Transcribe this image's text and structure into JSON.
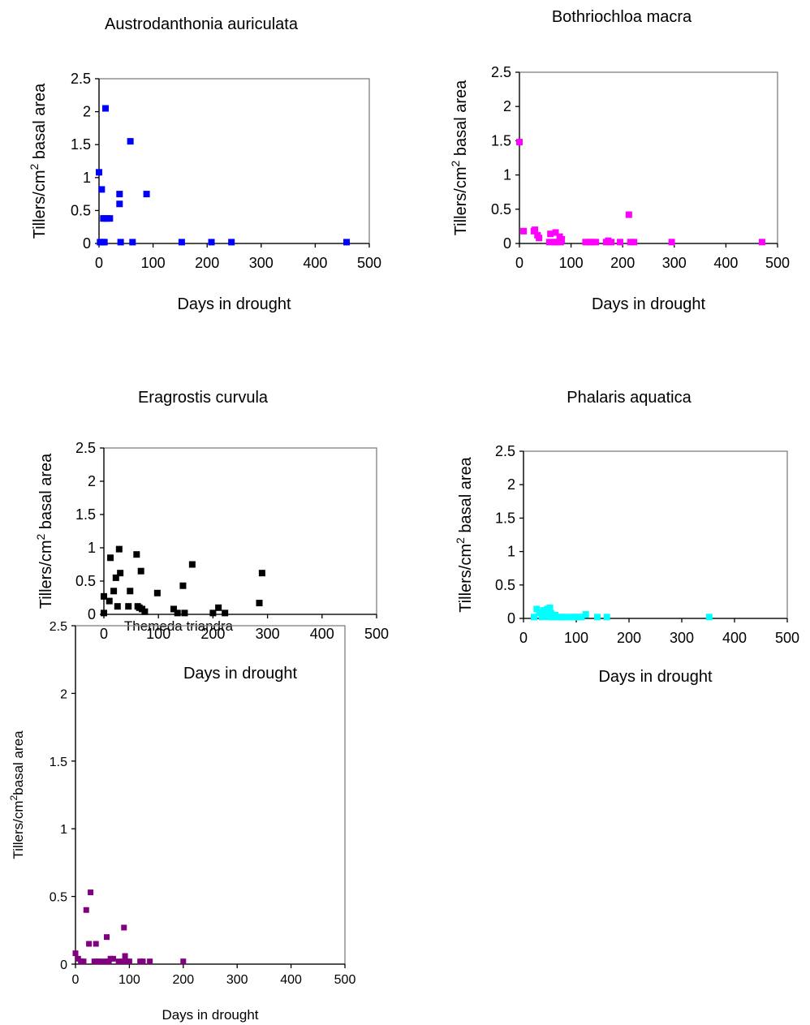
{
  "chart_data": [
    {
      "type": "scatter",
      "title": "Austrodanthonia auriculata",
      "xlabel": "Days in drought",
      "ylabel_prefix": "Tillers/cm",
      "ylabel_sup": "2",
      "ylabel_suffix": " basal area",
      "xlim": [
        0,
        500
      ],
      "ylim": [
        0,
        2.5
      ],
      "xticks": [
        "0",
        "100",
        "200",
        "300",
        "400",
        "500"
      ],
      "yticks": [
        "0",
        "0.5",
        "1",
        "1.5",
        "2",
        "2.5"
      ],
      "color": "#0000ff",
      "series": [
        {
          "x": [
            0,
            2,
            5,
            7,
            8,
            10,
            10,
            12,
            15,
            20,
            38,
            38,
            40,
            58,
            62,
            88,
            153,
            208,
            245,
            458
          ],
          "y": [
            1.08,
            0.02,
            0.82,
            0.02,
            0.38,
            0.02,
            0.38,
            2.05,
            0.38,
            0.38,
            0.6,
            0.75,
            0.02,
            1.55,
            0.02,
            0.75,
            0.02,
            0.02,
            0.02,
            0.02
          ]
        }
      ]
    },
    {
      "type": "scatter",
      "title": "Bothriochloa macra",
      "xlabel": "Days in drought",
      "ylabel_prefix": "Tillers/cm",
      "ylabel_sup": "2",
      "ylabel_suffix": " basal area",
      "xlim": [
        0,
        500
      ],
      "ylim": [
        0,
        2.5
      ],
      "xticks": [
        "0",
        "100",
        "200",
        "300",
        "400",
        "500"
      ],
      "yticks": [
        "0",
        "0.5",
        "1",
        "1.5",
        "2",
        "2.5"
      ],
      "color": "#ff00ff",
      "series": [
        {
          "x": [
            0,
            8,
            28,
            30,
            35,
            38,
            58,
            60,
            68,
            70,
            72,
            78,
            80,
            82,
            128,
            135,
            140,
            148,
            168,
            172,
            178,
            195,
            212,
            215,
            222,
            295,
            470
          ],
          "y": [
            1.48,
            0.18,
            0.18,
            0.2,
            0.12,
            0.08,
            0.02,
            0.14,
            0.02,
            0.16,
            0.02,
            0.1,
            0.02,
            0.06,
            0.02,
            0.02,
            0.02,
            0.02,
            0.02,
            0.04,
            0.02,
            0.02,
            0.42,
            0.02,
            0.02,
            0.02,
            0.02
          ]
        }
      ]
    },
    {
      "type": "scatter",
      "title": "Eragrostis curvula",
      "xlabel": "Days in drought",
      "ylabel_prefix": "Tillers/cm",
      "ylabel_sup": "2",
      "ylabel_suffix": " basal area",
      "xlim": [
        0,
        500
      ],
      "ylim": [
        0,
        2.5
      ],
      "xticks": [
        "0",
        "100",
        "200",
        "300",
        "400",
        "500"
      ],
      "yticks": [
        "0",
        "0.5",
        "1",
        "1.5",
        "2",
        "2.5"
      ],
      "color": "#000000",
      "series": [
        {
          "x": [
            0,
            0,
            10,
            12,
            18,
            22,
            25,
            28,
            30,
            45,
            48,
            60,
            62,
            65,
            68,
            70,
            75,
            98,
            128,
            135,
            145,
            148,
            162,
            200,
            210,
            222,
            285,
            290
          ],
          "y": [
            0.02,
            0.27,
            0.2,
            0.85,
            0.35,
            0.55,
            0.12,
            0.98,
            0.62,
            0.12,
            0.35,
            0.9,
            0.12,
            0.1,
            0.65,
            0.08,
            0.04,
            0.32,
            0.08,
            0.02,
            0.43,
            0.02,
            0.75,
            0.02,
            0.1,
            0.02,
            0.17,
            0.62
          ]
        }
      ]
    },
    {
      "type": "scatter",
      "title": "Phalaris aquatica",
      "xlabel": "Days in drought",
      "ylabel_prefix": "Tillers/cm",
      "ylabel_sup": "2",
      "ylabel_suffix": " basal area",
      "xlim": [
        0,
        500
      ],
      "ylim": [
        0,
        2.5
      ],
      "xticks": [
        "0",
        "100",
        "200",
        "300",
        "400",
        "500"
      ],
      "yticks": [
        "0",
        "0.5",
        "1",
        "1.5",
        "2",
        "2.5"
      ],
      "color": "#00ffff",
      "series": [
        {
          "x": [
            20,
            25,
            30,
            35,
            38,
            40,
            45,
            48,
            50,
            52,
            55,
            60,
            65,
            70,
            75,
            80,
            90,
            95,
            100,
            105,
            110,
            118,
            140,
            158,
            352
          ],
          "y": [
            0.02,
            0.14,
            0.08,
            0.02,
            0.12,
            0.05,
            0.14,
            0.02,
            0.16,
            0.08,
            0.02,
            0.05,
            0.02,
            0.02,
            0.02,
            0.02,
            0.02,
            0.02,
            0.02,
            0.02,
            0.02,
            0.06,
            0.02,
            0.02,
            0.02
          ]
        }
      ]
    },
    {
      "type": "scatter",
      "title": "Themeda triandra",
      "xlabel": "Days in drought",
      "ylabel_prefix": "Tillers/cm",
      "ylabel_sup": "2",
      "ylabel_suffix": "basal area",
      "xlim": [
        0,
        500
      ],
      "ylim": [
        0,
        2.5
      ],
      "xticks": [
        "0",
        "100",
        "200",
        "300",
        "400",
        "500"
      ],
      "yticks": [
        "0",
        "0.5",
        "1",
        "1.5",
        "2",
        "2.5"
      ],
      "color": "#800080",
      "series": [
        {
          "x": [
            0,
            5,
            10,
            15,
            20,
            25,
            28,
            35,
            38,
            40,
            45,
            55,
            58,
            62,
            65,
            70,
            80,
            88,
            90,
            92,
            95,
            100,
            120,
            125,
            138,
            200
          ],
          "y": [
            0.08,
            0.04,
            0.02,
            0.02,
            0.4,
            0.15,
            0.53,
            0.02,
            0.15,
            0.02,
            0.02,
            0.02,
            0.2,
            0.02,
            0.04,
            0.04,
            0.02,
            0.02,
            0.27,
            0.06,
            0.02,
            0.02,
            0.02,
            0.02,
            0.02,
            0.02
          ]
        }
      ]
    }
  ]
}
